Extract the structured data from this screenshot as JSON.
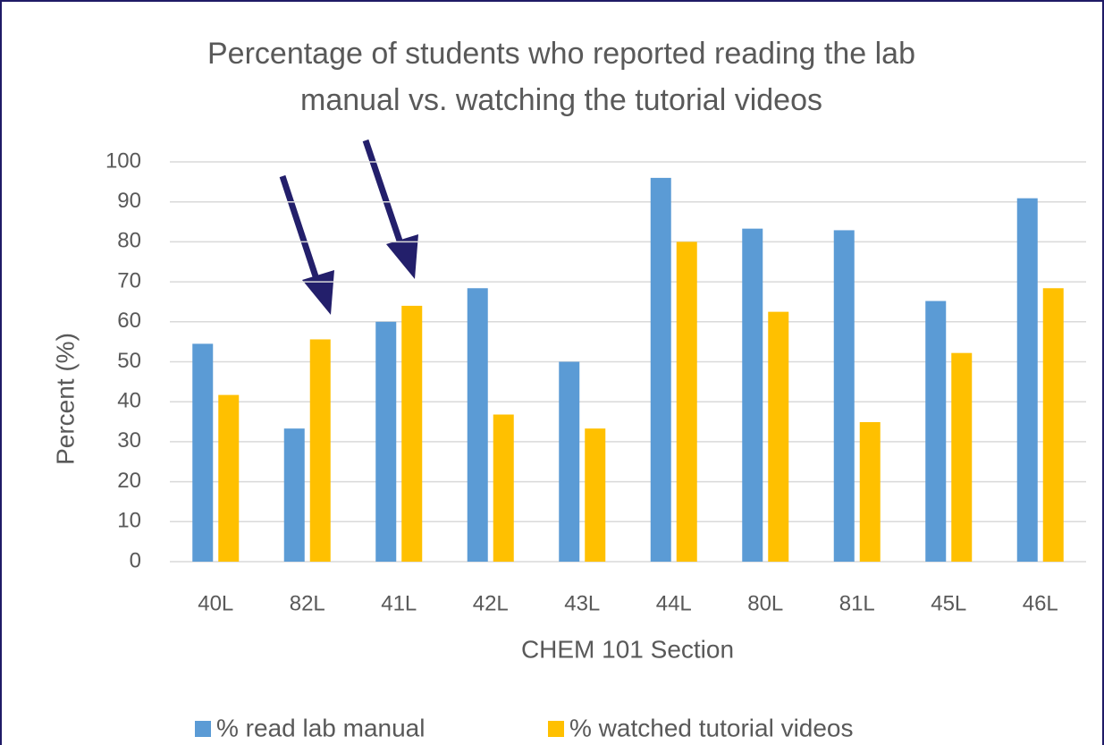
{
  "chart_data": {
    "type": "bar",
    "title": "Percentage of students who reported reading the lab manual vs. watching the tutorial videos",
    "xlabel": "CHEM 101 Section",
    "ylabel": "Percent (%)",
    "categories": [
      "40L",
      "82L",
      "41L",
      "42L",
      "43L",
      "44L",
      "80L",
      "81L",
      "45L",
      "46L"
    ],
    "series": [
      {
        "name": "% read lab manual",
        "color": "#5b9bd5",
        "values": [
          54.5,
          33.3,
          60,
          68.4,
          50,
          96,
          83.3,
          82.9,
          65.2,
          90.9
        ]
      },
      {
        "name": "% watched tutorial videos",
        "color": "#ffc000",
        "values": [
          41.7,
          55.6,
          64,
          36.8,
          33.3,
          80,
          62.5,
          34.9,
          52.2,
          68.4
        ]
      }
    ],
    "ylim": [
      0,
      100
    ],
    "yticks": [
      0,
      10,
      20,
      30,
      40,
      50,
      60,
      70,
      80,
      90,
      100
    ],
    "grid": true,
    "legend": "bottom"
  }
}
